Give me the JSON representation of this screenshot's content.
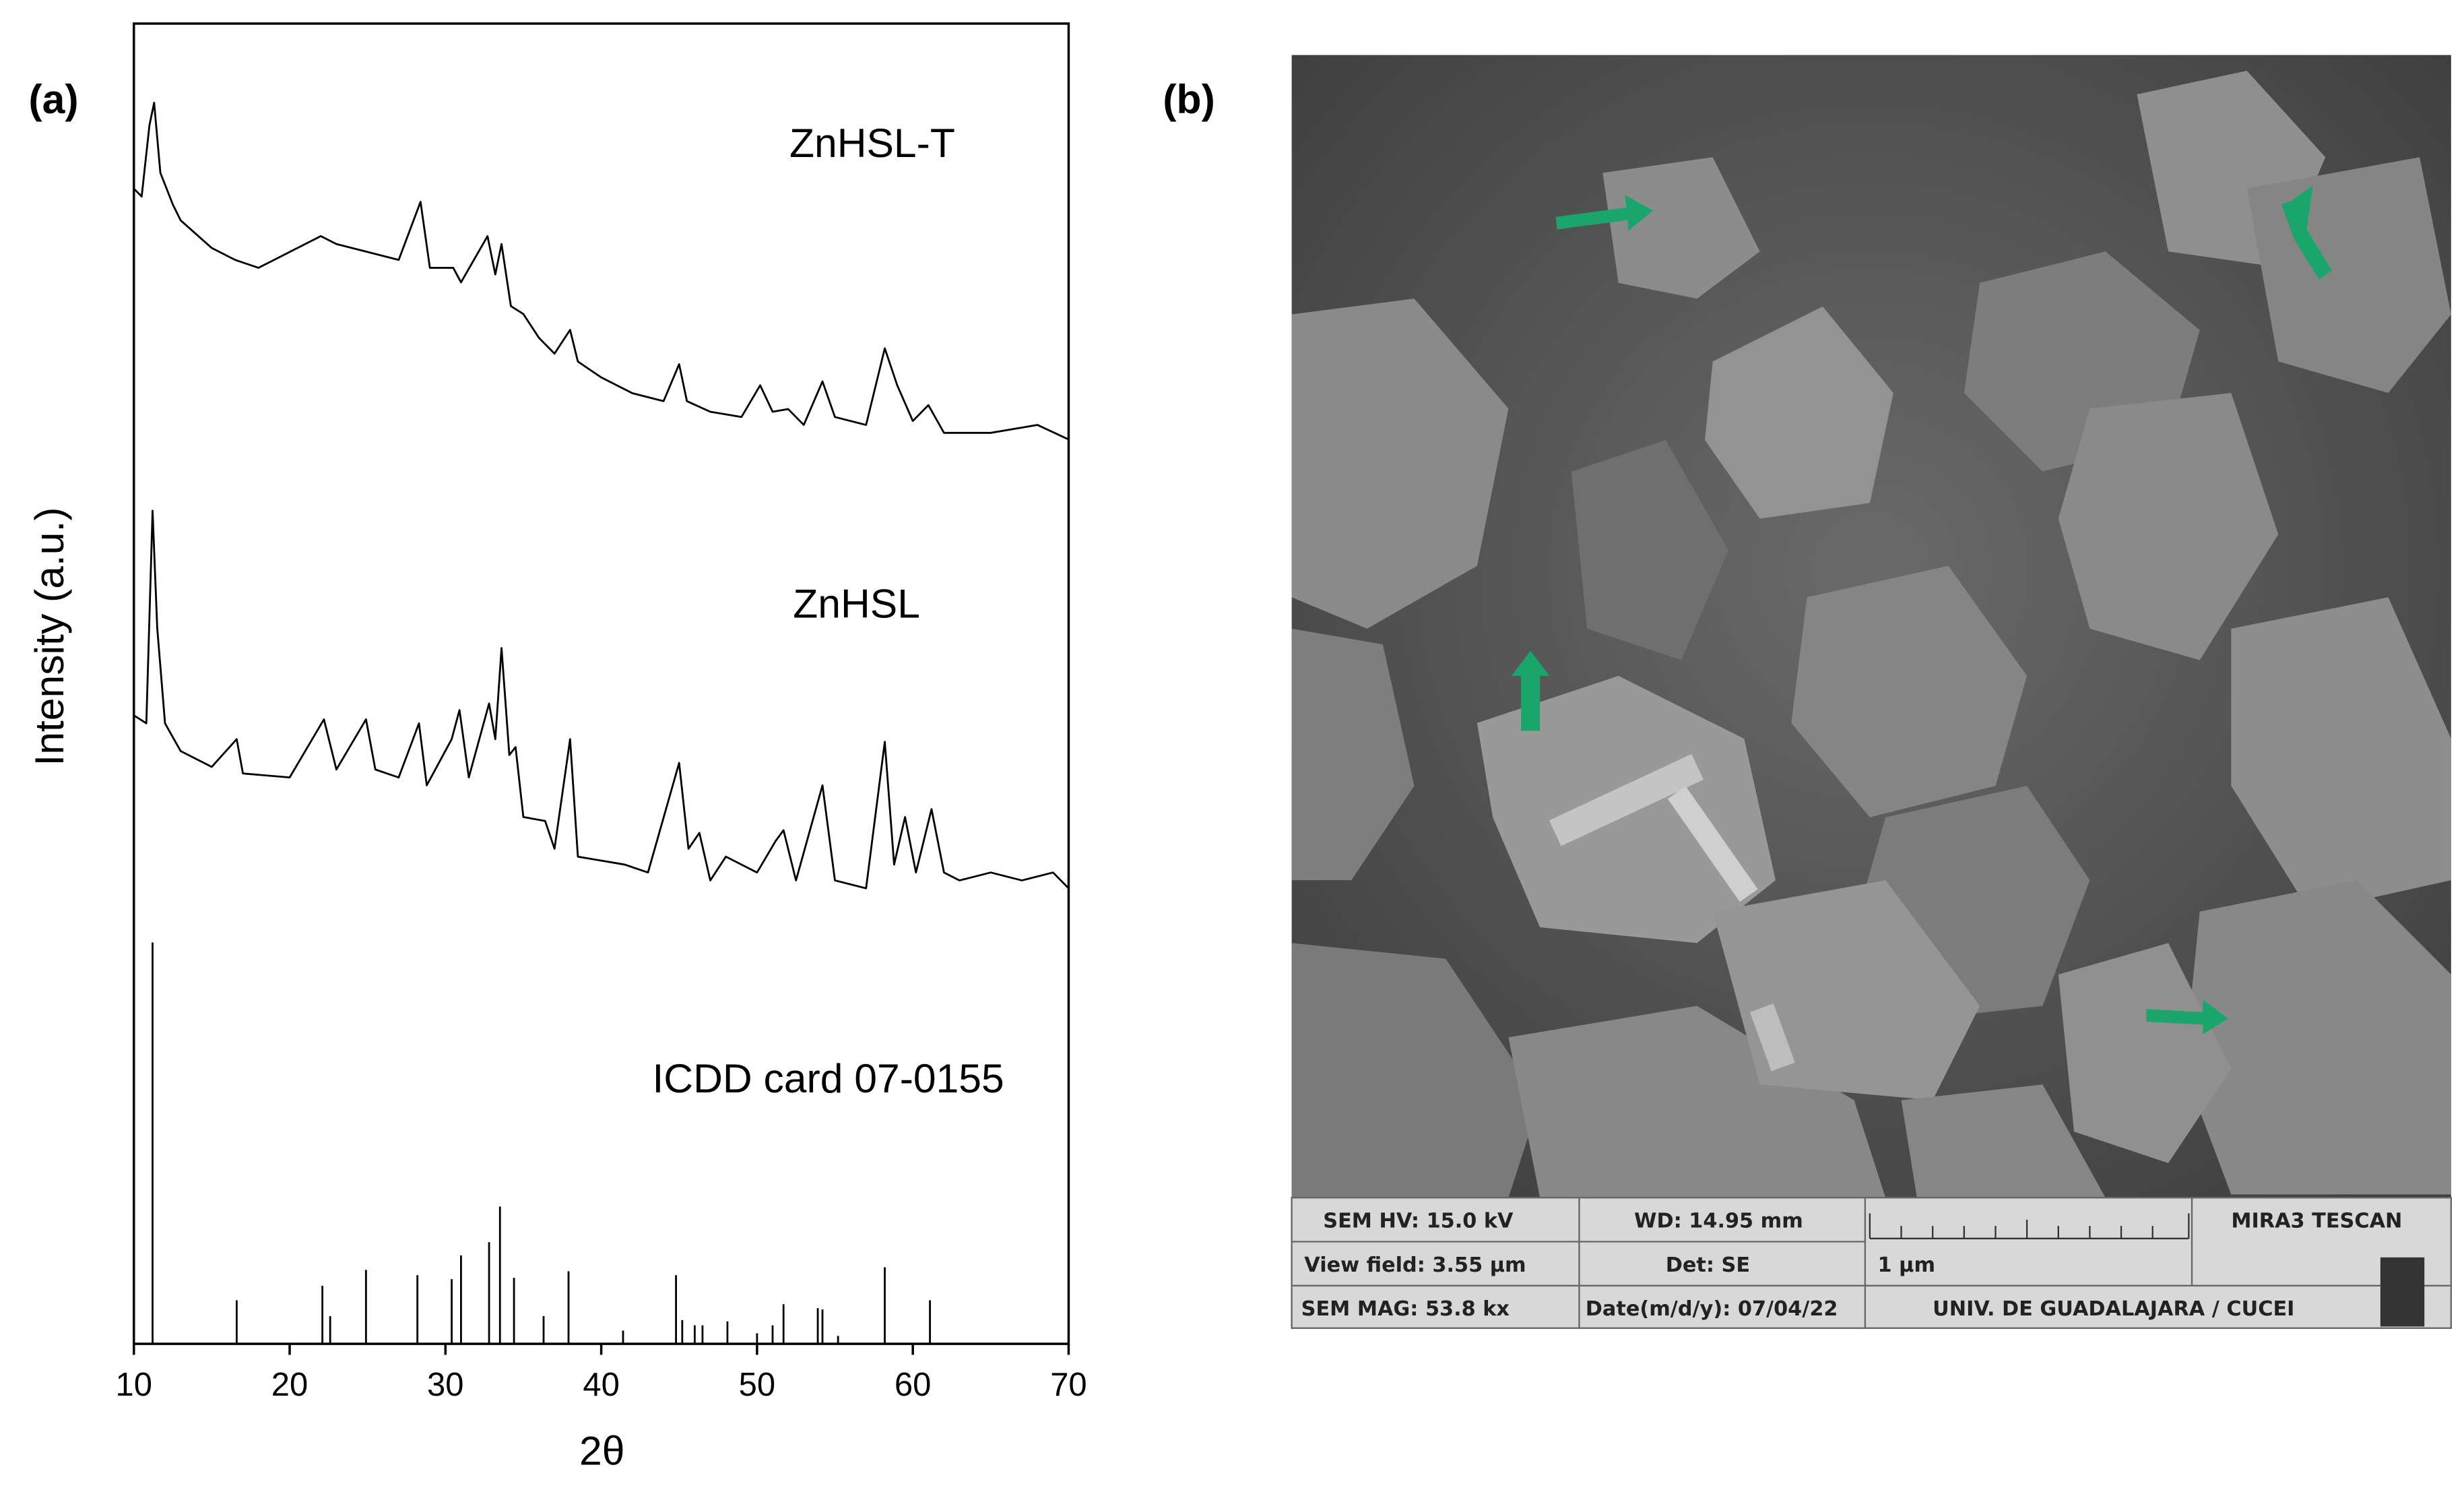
{
  "chart_data": {
    "type": "line",
    "x_label": "2θ",
    "y_label": "Intensity (a.u.)",
    "xlim": [
      10,
      70
    ],
    "xticks": [
      10,
      20,
      30,
      40,
      50,
      60,
      70
    ],
    "ylim": [
      0,
      100
    ],
    "series": [
      {
        "name": "ZnHSL-T",
        "color": "#000000",
        "style": "line",
        "x": [
          10,
          10.5,
          11,
          11.3,
          11.7,
          12.5,
          13,
          15,
          16.5,
          18,
          20,
          22,
          23,
          25,
          27,
          28.4,
          29,
          30.5,
          31,
          32.7,
          33.2,
          33.6,
          34.2,
          35,
          36,
          37,
          38,
          38.5,
          40,
          42,
          44,
          45,
          45.5,
          47,
          49,
          50.2,
          51,
          52,
          53,
          54.2,
          55,
          57,
          58.2,
          59,
          60,
          61,
          62,
          65,
          68,
          70
        ],
        "values": [
          87.5,
          86.9,
          92.3,
          94.0,
          88.7,
          86.3,
          85.1,
          83.0,
          82.1,
          81.5,
          82.7,
          83.9,
          83.3,
          82.7,
          82.1,
          86.5,
          81.5,
          81.5,
          80.4,
          83.9,
          81.0,
          83.3,
          78.6,
          78.0,
          76.2,
          75.0,
          76.8,
          74.4,
          73.2,
          72.0,
          71.4,
          74.2,
          71.4,
          70.6,
          70.2,
          72.6,
          70.6,
          70.8,
          69.6,
          72.9,
          70.2,
          69.6,
          75.4,
          72.6,
          69.9,
          71.1,
          69.0,
          69.0,
          69.6,
          68.5
        ]
      },
      {
        "name": "ZnHSL",
        "color": "#000000",
        "style": "line",
        "x": [
          10,
          10.8,
          11.2,
          11.5,
          12,
          13,
          15,
          16.6,
          17,
          20,
          22.2,
          23,
          24.9,
          25.5,
          27,
          28.3,
          28.8,
          30.4,
          30.9,
          31.5,
          32.8,
          33.2,
          33.6,
          34.1,
          34.5,
          35,
          36.4,
          37,
          38,
          38.5,
          41.5,
          43,
          45,
          45.6,
          46.3,
          47,
          48,
          50,
          51.2,
          51.7,
          52.5,
          54.2,
          55,
          57,
          58.2,
          58.8,
          59.5,
          60.2,
          61.2,
          62,
          63,
          65,
          67,
          69,
          70
        ],
        "values": [
          47.6,
          47.0,
          63.1,
          54.2,
          47.0,
          44.9,
          43.7,
          45.8,
          43.2,
          42.9,
          47.3,
          43.5,
          47.3,
          43.5,
          42.9,
          47.0,
          42.3,
          45.8,
          48.0,
          42.9,
          48.5,
          45.8,
          52.7,
          44.6,
          45.2,
          39.9,
          39.6,
          37.5,
          45.8,
          36.9,
          36.3,
          35.7,
          44.0,
          37.5,
          38.7,
          35.1,
          36.9,
          35.7,
          38.1,
          38.9,
          35.1,
          42.3,
          35.1,
          34.5,
          45.6,
          36.3,
          39.9,
          35.7,
          40.5,
          35.7,
          35.1,
          35.7,
          35.1,
          35.7,
          34.5
        ]
      },
      {
        "name": "ICDD card 07-0155",
        "color": "#000000",
        "style": "sticks",
        "x": [
          11.2,
          16.6,
          22.1,
          22.6,
          24.9,
          28.2,
          30.4,
          31.0,
          32.8,
          33.5,
          34.4,
          36.3,
          37.9,
          41.4,
          44.8,
          45.2,
          46.0,
          46.5,
          48.1,
          50.0,
          51.0,
          51.7,
          53.9,
          54.2,
          55.2,
          58.2,
          61.1
        ],
        "values": [
          30.4,
          3.3,
          4.4,
          2.1,
          5.6,
          5.2,
          4.9,
          6.7,
          7.7,
          10.4,
          5.0,
          2.1,
          5.5,
          1.0,
          5.2,
          1.8,
          1.4,
          1.4,
          1.7,
          0.8,
          1.4,
          3.0,
          2.7,
          2.6,
          0.6,
          5.8,
          3.3
        ]
      }
    ]
  },
  "panel_labels": [
    "(a)",
    "(b)"
  ],
  "sem_info": {
    "hv": "SEM HV: 15.0 kV",
    "wd": "WD: 14.95 mm",
    "instrument": "MIRA3 TESCAN",
    "view_field": "View field: 3.55 µm",
    "detector": "Det: SE",
    "scale": "1 µm",
    "magnification": "SEM MAG: 53.8 kx",
    "date": "Date(m/d/y): 07/04/22",
    "institution": "UNIV. DE GUADALAJARA  / CUCEI"
  }
}
